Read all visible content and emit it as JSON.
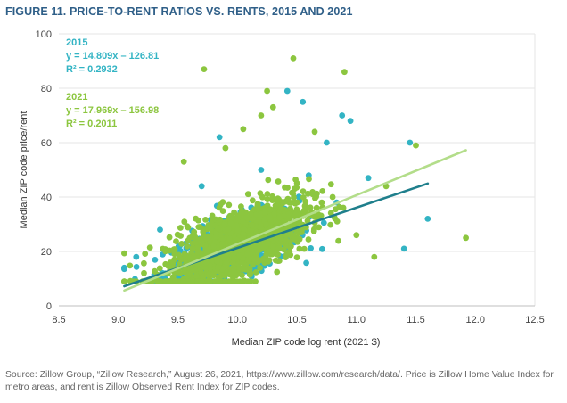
{
  "figure_title": "FIGURE 11. PRICE-TO-RENT RATIOS VS. RENTS, 2015 AND 2021",
  "source_note": "Source: Zillow Group, “Zillow Research,” August 26, 2021, https://www.zillow.com/research/data/. Price is Zillow Home Value Index for metro areas, and rent is Zillow Observed Rent Index for ZIP codes.",
  "colors": {
    "s2015": "#33b4c4",
    "s2021": "#8cc63f",
    "fit2015": "#1f7f8c",
    "fit2021": "#b3dd8a",
    "title": "#2f5f88",
    "grid": "#e6e6e6"
  },
  "chart_data": {
    "type": "scatter",
    "title": "FIGURE 11. PRICE-TO-RENT RATIOS VS. RENTS, 2015 AND 2021",
    "xlabel": "Median ZIP code log rent (2021 $)",
    "ylabel": "Median ZIP code price/rent",
    "xlim": [
      8.5,
      12.5
    ],
    "ylim": [
      0,
      100
    ],
    "xticks": [
      "8.5",
      "9.0",
      "9.5",
      "10.0",
      "10.5",
      "11.0",
      "11.5",
      "12.0",
      "12.5"
    ],
    "yticks": [
      "0",
      "20",
      "40",
      "60",
      "80",
      "100"
    ],
    "grid": "horizontal",
    "legend": "top-left",
    "series": [
      {
        "name": "2015",
        "color": "#33b4c4",
        "equation": "y = 14.809x – 126.81",
        "r2_label": "R² = 0.2932",
        "slope": 14.809,
        "intercept": -126.81,
        "fit_x": [
          9.05,
          11.6
        ],
        "cloud": {
          "n": 650,
          "x_center": 9.95,
          "x_spread": 0.28,
          "y_spread": 5.5
        },
        "points": [
          {
            "x": 10.42,
            "y": 79
          },
          {
            "x": 10.55,
            "y": 75
          },
          {
            "x": 10.88,
            "y": 70
          },
          {
            "x": 11.45,
            "y": 60
          },
          {
            "x": 9.85,
            "y": 62
          },
          {
            "x": 10.95,
            "y": 68
          },
          {
            "x": 11.6,
            "y": 32
          },
          {
            "x": 11.4,
            "y": 21
          },
          {
            "x": 10.75,
            "y": 60
          },
          {
            "x": 9.35,
            "y": 28
          },
          {
            "x": 9.15,
            "y": 18
          },
          {
            "x": 10.6,
            "y": 48
          },
          {
            "x": 10.2,
            "y": 50
          },
          {
            "x": 9.7,
            "y": 44
          },
          {
            "x": 11.1,
            "y": 47
          },
          {
            "x": 9.05,
            "y": 14
          }
        ]
      },
      {
        "name": "2021",
        "color": "#8cc63f",
        "equation": "y = 17.969x – 156.98",
        "r2_label": "R² = 0.2011",
        "slope": 17.969,
        "intercept": -156.98,
        "fit_x": [
          9.05,
          11.92
        ],
        "cloud": {
          "n": 1300,
          "x_center": 10.0,
          "x_spread": 0.3,
          "y_spread": 6.5
        },
        "points": [
          {
            "x": 10.47,
            "y": 91
          },
          {
            "x": 9.72,
            "y": 87
          },
          {
            "x": 10.9,
            "y": 86
          },
          {
            "x": 10.25,
            "y": 79
          },
          {
            "x": 10.3,
            "y": 73
          },
          {
            "x": 11.5,
            "y": 59
          },
          {
            "x": 11.92,
            "y": 25
          },
          {
            "x": 11.15,
            "y": 18
          },
          {
            "x": 10.2,
            "y": 70
          },
          {
            "x": 10.65,
            "y": 64
          },
          {
            "x": 11.0,
            "y": 26
          },
          {
            "x": 11.25,
            "y": 44
          },
          {
            "x": 9.55,
            "y": 53
          },
          {
            "x": 10.8,
            "y": 40
          },
          {
            "x": 10.05,
            "y": 65
          },
          {
            "x": 9.9,
            "y": 58
          }
        ]
      }
    ]
  }
}
